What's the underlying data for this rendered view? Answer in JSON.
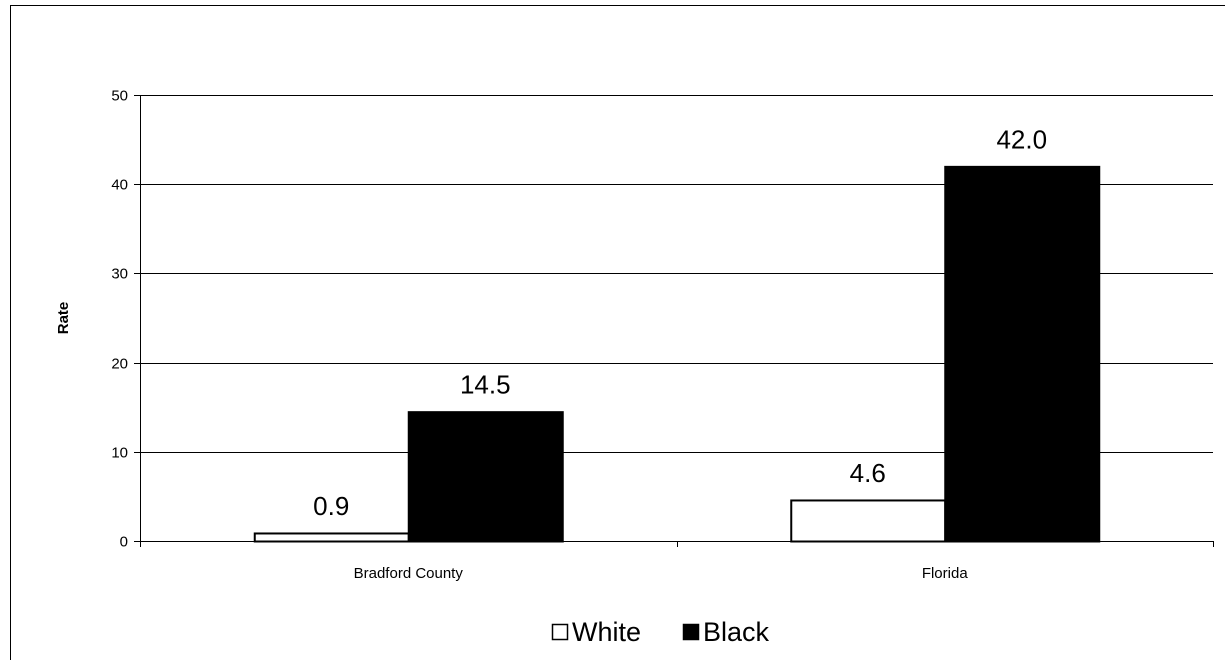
{
  "chart_data": {
    "type": "bar",
    "title": "",
    "xlabel": "",
    "ylabel": "Rate",
    "categories": [
      "Bradford County",
      "Florida"
    ],
    "series": [
      {
        "name": "White",
        "values": [
          0.9,
          4.6
        ],
        "value_labels": [
          "0.9",
          "4.6"
        ],
        "color": "#ffffff",
        "stroke": "#000000"
      },
      {
        "name": "Black",
        "values": [
          14.5,
          42.0
        ],
        "value_labels": [
          "14.5",
          "42.0"
        ],
        "color": "#000000",
        "stroke": "#000000"
      }
    ],
    "ylim": [
      0,
      50
    ],
    "yticks": [
      0,
      10,
      20,
      30,
      40,
      50
    ],
    "grid": true,
    "legend_position": "bottom"
  }
}
